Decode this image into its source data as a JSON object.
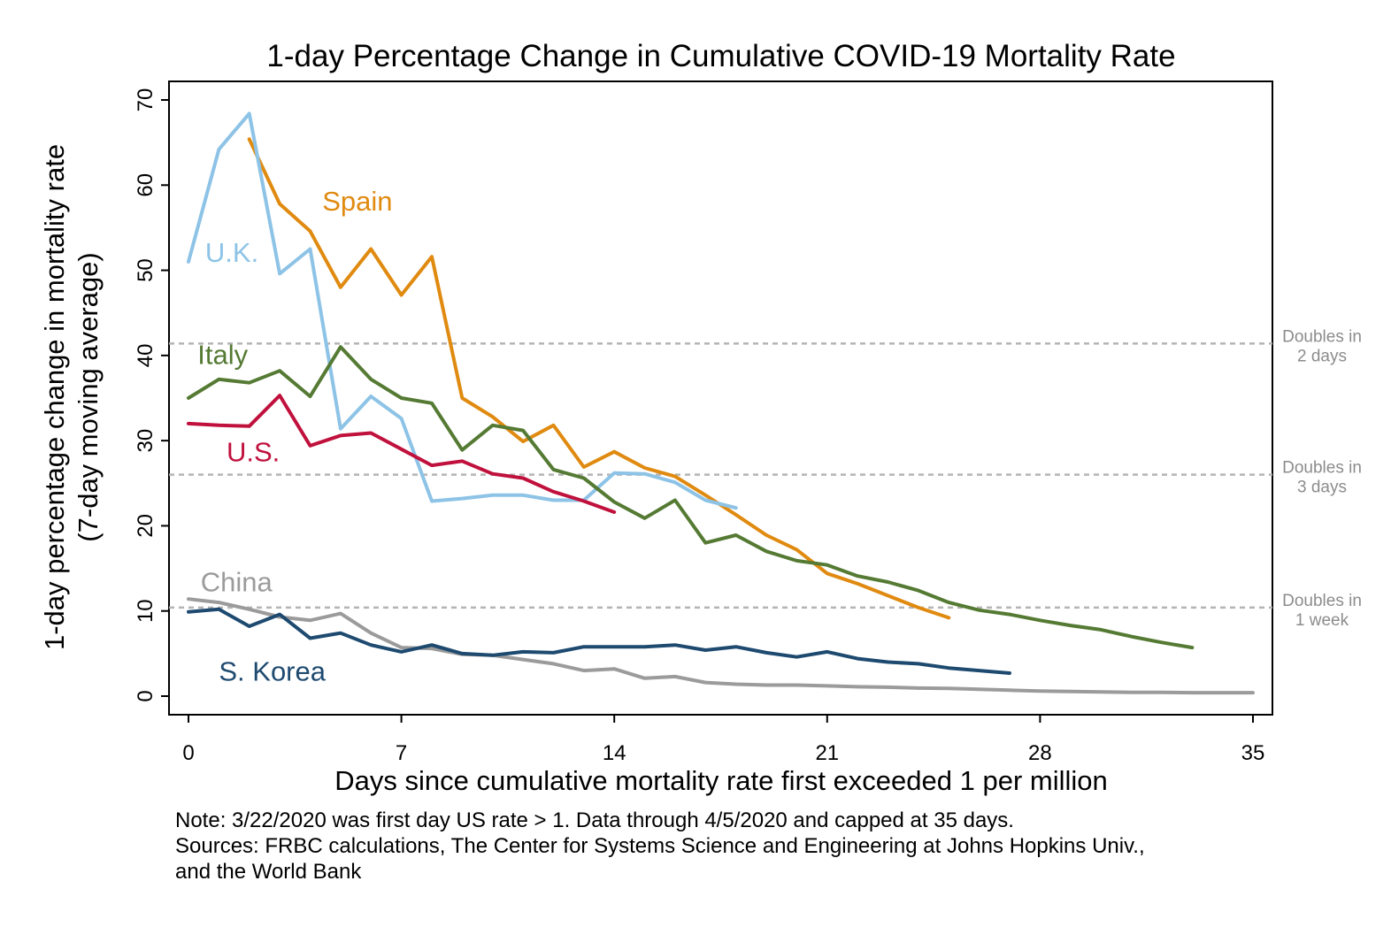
{
  "chart_data": {
    "type": "line",
    "title": "1-day Percentage Change in Cumulative COVID-19 Mortality Rate",
    "xlabel": "Days since cumulative mortality rate first exceeded 1 per million",
    "ylabel_line1": "1-day percentage change in mortality rate",
    "ylabel_line2": "(7-day moving average)",
    "xlim": [
      0,
      35
    ],
    "ylim": [
      0,
      70
    ],
    "xticks": [
      0,
      7,
      14,
      21,
      28,
      35
    ],
    "yticks": [
      0,
      10,
      20,
      30,
      40,
      50,
      60,
      70
    ],
    "grid": false,
    "legend": "none (direct labels)",
    "reference_lines": [
      {
        "y": 41.4,
        "label_line1": "Doubles in",
        "label_line2": "2 days"
      },
      {
        "y": 26.0,
        "label_line1": "Doubles in",
        "label_line2": "3 days"
      },
      {
        "y": 10.4,
        "label_line1": "Doubles in",
        "label_line2": "1 week"
      }
    ],
    "series": [
      {
        "name": "Spain",
        "color": "#e08a10",
        "label_x": 4.4,
        "label_y": 57,
        "x": [
          2,
          3,
          4,
          5,
          6,
          7,
          8,
          9,
          10,
          11,
          12,
          13,
          14,
          15,
          16,
          17,
          18,
          19,
          20,
          21,
          22,
          23,
          24,
          25
        ],
        "y": [
          65.4,
          57.8,
          54.6,
          48.0,
          52.5,
          47.1,
          51.6,
          35.0,
          32.8,
          29.9,
          31.8,
          26.9,
          28.7,
          26.8,
          25.8,
          23.6,
          21.3,
          18.9,
          17.2,
          14.4,
          13.2,
          11.8,
          10.4,
          9.2
        ]
      },
      {
        "name": "U.K.",
        "color": "#8dc3e6",
        "label_x": 0.55,
        "label_y": 51,
        "x": [
          0,
          1,
          2,
          3,
          4,
          5,
          6,
          7,
          8,
          9,
          10,
          11,
          12,
          13,
          14,
          15,
          16,
          17,
          18
        ],
        "y": [
          51.0,
          64.2,
          68.4,
          49.6,
          52.5,
          31.4,
          35.2,
          32.6,
          22.9,
          23.2,
          23.6,
          23.6,
          23.0,
          23.0,
          26.2,
          26.1,
          25.1,
          23.0,
          22.1
        ]
      },
      {
        "name": "Italy",
        "color": "#557a33",
        "label_x": 0.3,
        "label_y": 39,
        "x": [
          0,
          1,
          2,
          3,
          4,
          5,
          6,
          7,
          8,
          9,
          10,
          11,
          12,
          13,
          14,
          15,
          16,
          17,
          18,
          19,
          20,
          21,
          22,
          23,
          24,
          25,
          26,
          27,
          28,
          29,
          30,
          31,
          32,
          33
        ],
        "y": [
          35.0,
          37.2,
          36.8,
          38.2,
          35.2,
          41.0,
          37.2,
          35.0,
          34.4,
          28.9,
          31.8,
          31.2,
          26.6,
          25.6,
          22.8,
          20.9,
          23.0,
          18.0,
          18.9,
          17.0,
          15.9,
          15.4,
          14.1,
          13.4,
          12.4,
          11.0,
          10.1,
          9.6,
          8.9,
          8.3,
          7.8,
          7.0,
          6.3,
          5.7
        ]
      },
      {
        "name": "U.S.",
        "color": "#c0113d",
        "label_x": 1.25,
        "label_y": 27.6,
        "x": [
          0,
          1,
          2,
          3,
          4,
          5,
          6,
          7,
          8,
          9,
          10,
          11,
          12,
          13,
          14
        ],
        "y": [
          32.0,
          31.8,
          31.7,
          35.3,
          29.4,
          30.6,
          30.9,
          29.0,
          27.1,
          27.6,
          26.1,
          25.6,
          24.0,
          22.9,
          21.6
        ]
      },
      {
        "name": "China",
        "color": "#9b9b9b",
        "label_x": 0.4,
        "label_y": 12.3,
        "x": [
          0,
          1,
          2,
          3,
          4,
          5,
          6,
          7,
          8,
          9,
          10,
          11,
          12,
          13,
          14,
          15,
          16,
          17,
          18,
          19,
          20,
          21,
          22,
          23,
          24,
          25,
          26,
          27,
          28,
          29,
          30,
          31,
          32,
          33,
          34,
          35
        ],
        "y": [
          11.4,
          11.0,
          10.2,
          9.3,
          8.9,
          9.7,
          7.4,
          5.7,
          5.6,
          4.9,
          4.8,
          4.3,
          3.8,
          3.0,
          3.2,
          2.1,
          2.3,
          1.6,
          1.4,
          1.3,
          1.3,
          1.2,
          1.1,
          1.05,
          0.95,
          0.9,
          0.8,
          0.7,
          0.6,
          0.55,
          0.5,
          0.45,
          0.45,
          0.4,
          0.4,
          0.4
        ]
      },
      {
        "name": "S. Korea",
        "color": "#1e4a70",
        "label_x": 1.0,
        "label_y": 1.8,
        "x": [
          0,
          1,
          2,
          3,
          4,
          5,
          6,
          7,
          8,
          9,
          10,
          11,
          12,
          13,
          14,
          15,
          16,
          17,
          18,
          19,
          20,
          21,
          22,
          23,
          24,
          25,
          26,
          27
        ],
        "y": [
          9.9,
          10.2,
          8.2,
          9.6,
          6.8,
          7.4,
          6.0,
          5.2,
          6.0,
          5.0,
          4.8,
          5.2,
          5.1,
          5.8,
          5.8,
          5.8,
          6.0,
          5.4,
          5.8,
          5.1,
          4.6,
          5.2,
          4.4,
          4.0,
          3.8,
          3.3,
          3.0,
          2.7
        ]
      }
    ]
  },
  "note": {
    "line1": "Note: 3/22/2020 was first day US rate > 1. Data through 4/5/2020 and capped at 35 days.",
    "line2": "Sources: FRBC calculations, The Center for Systems Science and Engineering at Johns Hopkins Univ.,",
    "line3": "and the World Bank"
  }
}
